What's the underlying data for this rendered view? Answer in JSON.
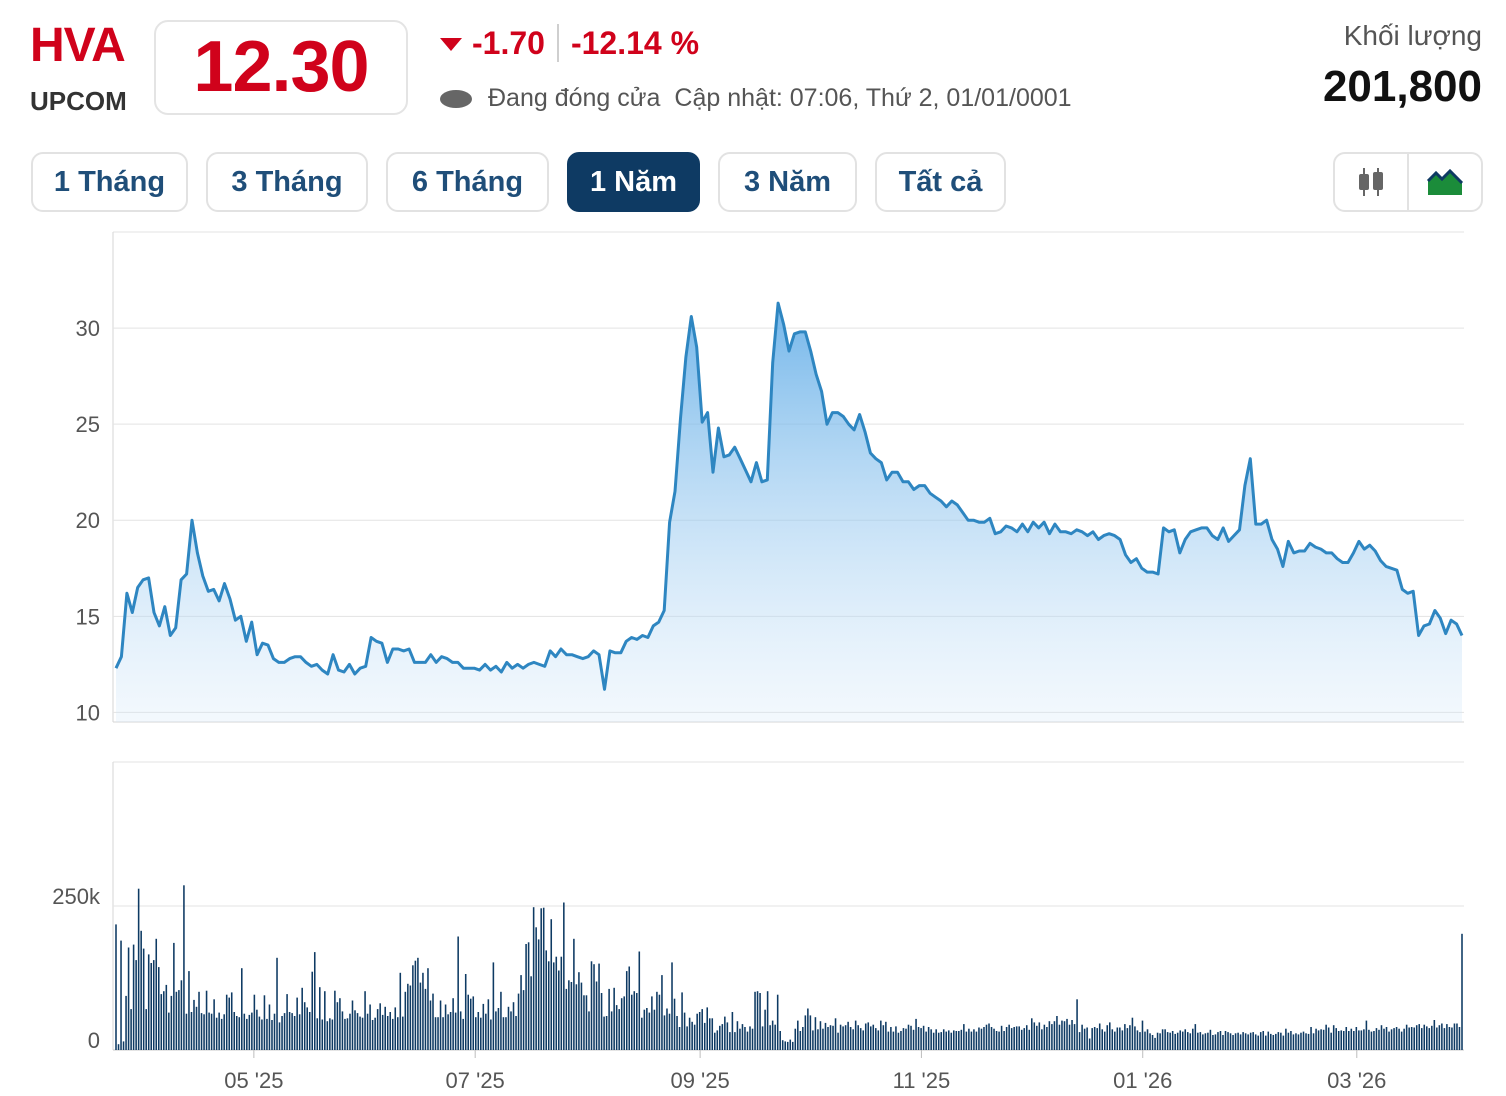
{
  "header": {
    "ticker": "HVA",
    "exchange": "UPCOM",
    "price": "12.30",
    "change": "-1.70",
    "change_pct": "-12.14 %",
    "status": "Đang đóng cửa",
    "updated": "Cập nhật: 07:06, Thứ 2, 01/01/0001",
    "volume_label": "Khối lượng",
    "volume_value": "201,800",
    "accent_color": "#d0021b"
  },
  "tabs": [
    {
      "label": "1 Tháng",
      "active": false
    },
    {
      "label": "3 Tháng",
      "active": false
    },
    {
      "label": "6 Tháng",
      "active": false
    },
    {
      "label": "1 Năm",
      "active": true
    },
    {
      "label": "3 Năm",
      "active": false
    },
    {
      "label": "Tất cả",
      "active": false
    }
  ],
  "chart_toggle": {
    "options": [
      "candlestick-icon",
      "area-chart-icon"
    ],
    "selected": "area-chart-icon"
  },
  "chart_data": [
    {
      "type": "area",
      "title": "",
      "xlabel": "",
      "ylabel": "",
      "ylim": [
        9.5,
        35
      ],
      "yticks": [
        10,
        15,
        20,
        25,
        30
      ],
      "grid": true,
      "color": "#2e86c1",
      "x_range": [
        "2025-03-24",
        "2026-03-30"
      ],
      "xtick_labels": [
        {
          "label": "05 '25",
          "date": "2025-05-01"
        },
        {
          "label": "07 '25",
          "date": "2025-07-01"
        },
        {
          "label": "09 '25",
          "date": "2025-09-01"
        },
        {
          "label": "11 '25",
          "date": "2025-11-01"
        },
        {
          "label": "01 '26",
          "date": "2026-01-01"
        },
        {
          "label": "03 '26",
          "date": "2026-03-01"
        }
      ],
      "series": [
        {
          "values": [
            12.3,
            12.9,
            16.2,
            15.2,
            16.5,
            16.9,
            17.0,
            15.2,
            14.5,
            15.5,
            14.0,
            14.4,
            16.9,
            17.2,
            20.0,
            18.3,
            17.1,
            16.3,
            16.4,
            15.8,
            16.7,
            15.9,
            14.8,
            15.0,
            13.7,
            14.7,
            13.0,
            13.6,
            13.5,
            12.8,
            12.6,
            12.6,
            12.8,
            12.9,
            12.9,
            12.6,
            12.4,
            12.5,
            12.2,
            12.0,
            13.0,
            12.2,
            12.1,
            12.5,
            12.0,
            12.3,
            12.4,
            13.9,
            13.7,
            13.6,
            12.6,
            13.3,
            13.3,
            13.2,
            13.3,
            12.6,
            12.6,
            12.6,
            13.0,
            12.6,
            12.9,
            12.8,
            12.6,
            12.6,
            12.3,
            12.3,
            12.3,
            12.2,
            12.5,
            12.2,
            12.4,
            12.1,
            12.6,
            12.3,
            12.5,
            12.3,
            12.5,
            12.6,
            12.5,
            12.4,
            13.2,
            12.9,
            13.3,
            13.0,
            13.0,
            12.9,
            12.8,
            12.9,
            13.2,
            13.0,
            11.2,
            13.2,
            13.1,
            13.1,
            13.7,
            13.9,
            13.8,
            14.0,
            13.9,
            14.5,
            14.7,
            15.3,
            19.9,
            21.5,
            25.3,
            28.5,
            30.6,
            29.0,
            25.1,
            25.6,
            22.5,
            24.8,
            23.3,
            23.4,
            23.8,
            23.2,
            22.6,
            22.0,
            23.0,
            22.0,
            22.1,
            28.2,
            31.3,
            30.2,
            28.8,
            29.7,
            29.8,
            29.8,
            28.8,
            27.6,
            26.7,
            25.0,
            25.6,
            25.6,
            25.4,
            25.0,
            24.7,
            25.5,
            24.6,
            23.5,
            23.2,
            23.0,
            22.1,
            22.5,
            22.5,
            22.0,
            22.0,
            21.6,
            21.8,
            21.8,
            21.4,
            21.2,
            21.0,
            20.7,
            21.0,
            20.8,
            20.4,
            20.0,
            20.0,
            19.9,
            19.9,
            20.1,
            19.3,
            19.4,
            19.7,
            19.6,
            19.4,
            19.8,
            19.4,
            19.9,
            19.6,
            19.9,
            19.3,
            19.8,
            19.4,
            19.4,
            19.3,
            19.5,
            19.4,
            19.2,
            19.4,
            19.0,
            19.2,
            19.3,
            19.2,
            19.0,
            18.2,
            17.8,
            18.0,
            17.5,
            17.3,
            17.3,
            17.2,
            19.6,
            19.4,
            19.5,
            18.3,
            19.0,
            19.4,
            19.5,
            19.6,
            19.6,
            19.2,
            19.0,
            19.6,
            18.9,
            19.2,
            19.5,
            21.8,
            23.2,
            19.8,
            19.8,
            20.0,
            19.0,
            18.5,
            17.6,
            18.9,
            18.3,
            18.4,
            18.4,
            18.8,
            18.6,
            18.5,
            18.3,
            18.3,
            18.0,
            17.8,
            17.8,
            18.3,
            18.9,
            18.5,
            18.7,
            18.4,
            17.9,
            17.6,
            17.5,
            17.4,
            16.4,
            16.2,
            16.3,
            14.0,
            14.5,
            14.6,
            15.3,
            14.9,
            14.1,
            14.8,
            14.6,
            14.0
          ]
        }
      ]
    },
    {
      "type": "bar",
      "title": "",
      "xlabel": "",
      "ylabel": "",
      "ylim": [
        0,
        500000
      ],
      "yticks": [
        {
          "label": "0",
          "value": 0
        },
        {
          "label": "250k",
          "value": 250000
        }
      ],
      "grid": true,
      "color": "#0e3a63",
      "series": [
        {
          "values": [
            218000,
            10000,
            190000,
            15000,
            94000,
            178000,
            71000,
            183000,
            156000,
            280000,
            207000,
            176000,
            71000,
            166000,
            151000,
            156000,
            193000,
            144000,
            97000,
            102000,
            113000,
            65000,
            94000,
            186000,
            101000,
            104000,
            121000,
            286000,
            63000,
            137000,
            66000,
            87000,
            75000,
            101000,
            64000,
            62000,
            103000,
            65000,
            63000,
            88000,
            56000,
            65000,
            54000,
            62000,
            96000,
            91000,
            100000,
            66000,
            59000,
            57000,
            142000,
            63000,
            54000,
            61000,
            65000,
            96000,
            70000,
            58000,
            53000,
            95000,
            54000,
            79000,
            52000,
            63000,
            160000,
            48000,
            59000,
            64000,
            97000,
            66000,
            64000,
            59000,
            91000,
            62000,
            108000,
            83000,
            74000,
            66000,
            136000,
            170000,
            55000,
            109000,
            53000,
            102000,
            50000,
            55000,
            53000,
            103000,
            83000,
            90000,
            67000,
            54000,
            55000,
            63000,
            86000,
            69000,
            64000,
            58000,
            56000,
            102000,
            63000,
            79000,
            52000,
            56000,
            71000,
            81000,
            61000,
            75000,
            59000,
            66000,
            54000,
            74000,
            57000,
            134000,
            58000,
            101000,
            115000,
            112000,
            147000,
            155000,
            160000,
            117000,
            134000,
            106000,
            142000,
            86000,
            98000,
            57000,
            57000,
            86000,
            57000,
            79000,
            62000,
            66000,
            90000,
            65000,
            197000,
            67000,
            54000,
            132000,
            96000,
            89000,
            93000,
            57000,
            66000,
            56000,
            80000,
            63000,
            88000,
            53000,
            152000,
            67000,
            73000,
            101000,
            57000,
            57000,
            75000,
            67000,
            83000,
            59000,
            98000,
            130000,
            104000,
            184000,
            187000,
            128000,
            248000,
            213000,
            192000,
            246000,
            247000,
            173000,
            154000,
            227000,
            152000,
            162000,
            138000,
            162000,
            256000,
            106000,
            121000,
            118000,
            193000,
            114000,
            135000,
            117000,
            95000,
            95000,
            67000,
            154000,
            149000,
            119000,
            150000,
            99000,
            58000,
            59000,
            106000,
            67000,
            108000,
            78000,
            71000,
            90000,
            93000,
            137000,
            145000,
            96000,
            102000,
            99000,
            171000,
            56000,
            70000,
            73000,
            65000,
            93000,
            70000,
            101000,
            96000,
            130000,
            60000,
            72000,
            63000,
            152000,
            89000,
            59000,
            40000,
            100000,
            65000,
            41000,
            56000,
            49000,
            44000,
            63000,
            66000,
            71000,
            47000,
            74000,
            55000,
            55000,
            30000,
            34000,
            42000,
            45000,
            58000,
            48000,
            31000,
            66000,
            31000,
            50000,
            37000,
            45000,
            40000,
            32000,
            41000,
            37000,
            101000,
            102000,
            99000,
            41000,
            70000,
            102000,
            43000,
            51000,
            44000,
            96000,
            33000,
            17000,
            15000,
            14000,
            18000,
            14000,
            37000,
            51000,
            33000,
            40000,
            60000,
            72000,
            60000,
            34000,
            57000,
            36000,
            50000,
            37000,
            47000,
            40000,
            43000,
            42000,
            55000,
            30000,
            44000,
            41000,
            43000,
            49000,
            40000,
            36000,
            51000,
            43000,
            38000,
            34000,
            46000,
            48000,
            41000,
            44000,
            38000,
            34000,
            51000,
            43000,
            49000,
            32000,
            40000,
            32000,
            41000,
            30000,
            33000,
            38000,
            37000,
            44000,
            42000,
            35000,
            54000,
            40000,
            38000,
            42000,
            32000,
            40000,
            36000,
            30000,
            36000,
            30000,
            31000,
            36000,
            32000,
            34000,
            30000,
            34000,
            33000,
            33000,
            35000,
            45000,
            32000,
            37000,
            32000,
            36000,
            32000,
            39000,
            37000,
            40000,
            44000,
            46000,
            40000,
            37000,
            33000,
            32000,
            42000,
            33000,
            40000,
            44000,
            38000,
            40000,
            41000,
            41000,
            35000,
            38000,
            43000,
            35000,
            55000,
            48000,
            42000,
            48000,
            36000,
            44000,
            40000,
            50000,
            45000,
            50000,
            59000,
            44000,
            51000,
            50000,
            54000,
            44000,
            52000,
            45000,
            88000,
            31000,
            44000,
            37000,
            39000,
            20000,
            38000,
            40000,
            38000,
            46000,
            36000,
            32000,
            43000,
            48000,
            36000,
            32000,
            39000,
            39000,
            34000,
            45000,
            38000,
            43000,
            56000,
            41000,
            34000,
            31000,
            51000,
            32000,
            36000,
            29000,
            26000,
            21000,
            30000,
            29000,
            36000,
            36000,
            31000,
            30000,
            33000,
            28000,
            30000,
            34000,
            32000,
            36000,
            31000,
            29000,
            37000,
            45000,
            30000,
            31000,
            27000,
            29000,
            30000,
            35000,
            26000,
            27000,
            31000,
            33000,
            26000,
            33000,
            31000,
            29000,
            26000,
            29000,
            30000,
            27000,
            31000,
            29000,
            27000,
            30000,
            31000,
            27000,
            25000,
            31000,
            33000,
            25000,
            32000,
            28000,
            26000,
            28000,
            31000,
            30000,
            25000,
            37000,
            30000,
            33000,
            27000,
            29000,
            27000,
            30000,
            32000,
            29000,
            28000,
            40000,
            29000,
            37000,
            34000,
            36000,
            35000,
            44000,
            39000,
            30000,
            43000,
            38000,
            33000,
            34000,
            33000,
            40000,
            33000,
            37000,
            33000,
            40000,
            34000,
            34000,
            36000,
            51000,
            35000,
            32000,
            33000,
            38000,
            35000,
            43000,
            37000,
            40000,
            32000,
            36000,
            38000,
            40000,
            37000,
            32000,
            37000,
            44000,
            39000,
            40000,
            39000,
            43000,
            45000,
            38000,
            44000,
            41000,
            38000,
            42000,
            52000,
            39000,
            43000,
            46000,
            38000,
            45000,
            40000,
            39000,
            46000,
            46000,
            40000,
            201800
          ]
        }
      ]
    }
  ]
}
